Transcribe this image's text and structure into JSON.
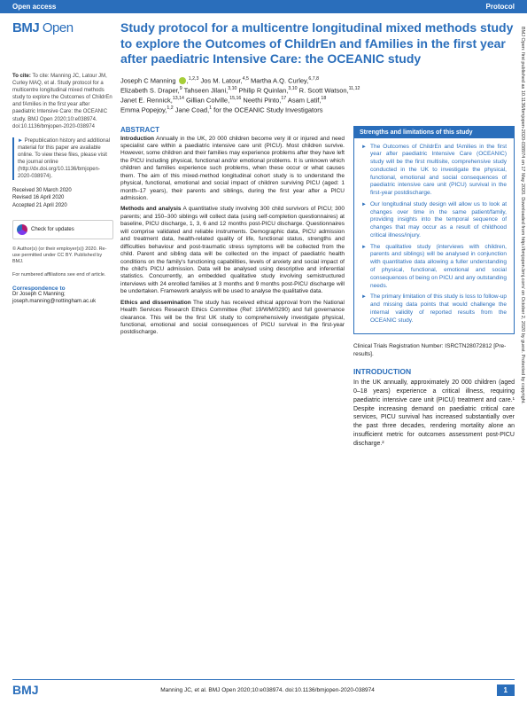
{
  "topbar": {
    "left": "Open access",
    "right": "Protocol"
  },
  "logo": {
    "bmj": "BMJ",
    "open": "Open"
  },
  "title": "Study protocol for a multicentre longitudinal mixed methods study to explore the Outcomes of ChildrEn and fAmilies in the first year after paediatric Intensive Care: the OCEANIC study",
  "authors_html": "Joseph C Manning <sup>1,2,3</sup> Jos M. Latour,<sup>4,5</sup> Martha A.Q. Curley,<sup>6,7,8</sup> Elizabeth S. Draper,<sup>9</sup> Tahseen Jilani,<sup>3,10</sup> Philip R Quinlan,<sup>3,10</sup> R. Scott Watson,<sup>11,12</sup> Janet E. Rennick,<sup>13,14</sup> Gillian Colville,<sup>15,16</sup> Neethi Pinto,<sup>17</sup> Asam Latif,<sup>18</sup> Emma Popejoy,<sup>1,2</sup> Jane Coad,<sup>1</sup> for the OCEANIC Study Investigators",
  "cite": "To cite: Manning JC, Latour JM, Curley MAQ, et al. Study protocol for a multicentre longitudinal mixed methods study to explore the Outcomes of ChildrEn and fAmilies in the first year after paediatric Intensive Care: the OCEANIC study. BMJ Open 2020;10:e038974. doi:10.1136/bmjopen-2020-038974",
  "prepub": "Prepublication history and additional material for this paper are available online. To view these files, please visit the journal online (http://dx.doi.org/10.1136/bmjopen-2020-038974).",
  "dates": {
    "received": "Received 30 March 2020",
    "revised": "Revised 16 April 2020",
    "accepted": "Accepted 21 April 2020"
  },
  "check_updates": "Check for updates",
  "license": "© Author(s) (or their employer(s)) 2020. Re-use permitted under CC BY. Published by BMJ.",
  "affil_note": "For numbered affiliations see end of article.",
  "correspondence": {
    "head": "Correspondence to",
    "body": "Dr Joseph C Manning; joseph.manning@nottingham.ac.uk"
  },
  "abstract": {
    "head": "ABSTRACT",
    "intro_lead": "Introduction",
    "intro": "Annually in the UK, 20 000 children become very ill or injured and need specialist care within a paediatric intensive care unit (PICU). Most children survive. However, some children and their families may experience problems after they have left the PICU including physical, functional and/or emotional problems. It is unknown which children and families experience such problems, when these occur or what causes them. The aim of this mixed-method longitudinal cohort study is to understand the physical, functional, emotional and social impact of children surviving PICU (aged: 1 month–17 years), their parents and siblings, during the first year after a PICU admission.",
    "methods_lead": "Methods and analysis",
    "methods": "A quantitative study involving 300 child survivors of PICU; 300 parents; and 150–300 siblings will collect data (using self-completion questionnaires) at baseline, PICU discharge, 1, 3, 6 and 12 months post-PICU discharge. Questionnaires will comprise validated and reliable instruments. Demographic data, PICU admission and treatment data, health-related quality of life, functional status, strengths and difficulties behaviour and post-traumatic stress symptoms will be collected from the child. Parent and sibling data will be collected on the impact of paediatric health conditions on the family's functioning capabilities, levels of anxiety and social impact of the child's PICU admission. Data will be analysed using descriptive and inferential statistics. Concurrently, an embedded qualitative study involving semistructured interviews with 24 enrolled families at 3 months and 9 months post-PICU discharge will be undertaken. Framework analysis will be used to analyse the qualitative data.",
    "ethics_lead": "Ethics and dissemination",
    "ethics": "The study has received ethical approval from the National Health Services Research Ethics Committee (Ref: 19/WM/0290) and full governance clearance. This will be the first UK study to comprehensively investigate physical, functional, emotional and social consequences of PICU survival in the first-year postdischarge."
  },
  "strengths": {
    "head": "Strengths and limitations of this study",
    "items": [
      "The Outcomes of ChildrEn and fAmilies in the first year after paediatric Intensive Care (OCEANIC) study will be the first multisite, comprehensive study conducted in the UK to investigate the physical, functional, emotional and social consequences of paediatric intensive care unit (PICU) survival in the first-year postdischarge.",
      "Our longitudinal study design will allow us to look at changes over time in the same patient/family, providing insights into the temporal sequence of changes that may occur as a result of childhood critical illness/injury.",
      "The qualitative study (interviews with children, parents and siblings) will be analysed in conjunction with quantitative data allowing a fuller understanding of physical, functional, emotional and social consequences of being on PICU and any outstanding needs.",
      "The primary limitation of this study is loss to follow-up and missing data points that would challenge the internal validity of reported results from the OCEANIC study."
    ]
  },
  "trial_reg": "Clinical Trials Registration Number: ISRCTN28072812 [Pre-results].",
  "introduction": {
    "head": "INTRODUCTION",
    "body": "In the UK annually, approximately 20 000 children (aged 0–18 years) experience a critical illness, requiring paediatric intensive care unit (PICU) treatment and care.¹ Despite increasing demand on paediatric critical care services, PICU survival has increased substantially over the past three decades, rendering mortality alone an insufficient metric for outcomes assessment post-PICU discharge.²"
  },
  "footer": {
    "bmj": "BMJ",
    "cite": "Manning JC, et al. BMJ Open 2020;10:e038974. doi:10.1136/bmjopen-2020-038974",
    "page": "1"
  },
  "side_text": "BMJ Open: first published as 10.1136/bmjopen-2020-038974 on 17 May 2020. Downloaded from http://bmjopen.bmj.com/ on October 2, 2020 by guest. Protected by copyright."
}
